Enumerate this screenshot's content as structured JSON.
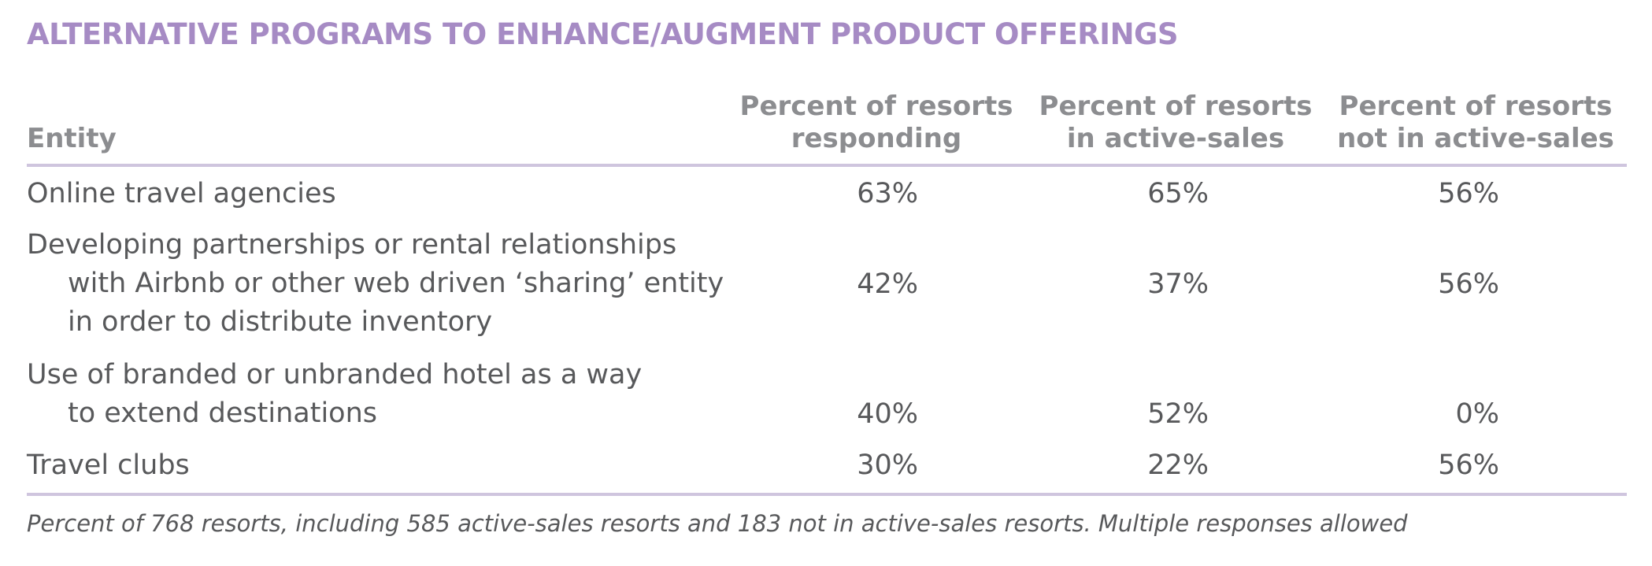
{
  "title": "ALTERNATIVE PROGRAMS TO ENHANCE/AUGMENT PRODUCT OFFERINGS",
  "chart_data": {
    "type": "table",
    "columns": [
      "Entity",
      "Percent of resorts responding",
      "Percent of resorts in active-sales",
      "Percent of resorts not in active-sales"
    ],
    "header_lines": {
      "entity": "Entity",
      "col1": [
        "Percent of resorts",
        "responding"
      ],
      "col2": [
        "Percent of resorts",
        "in active-sales"
      ],
      "col3": [
        "Percent of resorts",
        "not in active-sales"
      ]
    },
    "rows": [
      {
        "label_lines": [
          "Online travel agencies"
        ],
        "values": [
          "63%",
          "65%",
          "56%"
        ]
      },
      {
        "label_lines": [
          "Developing partnerships or rental relationships",
          "with Airbnb or other web driven ‘sharing’ entity",
          "in order to distribute inventory"
        ],
        "values": [
          "42%",
          "37%",
          "56%"
        ]
      },
      {
        "label_lines": [
          "Use of branded or unbranded hotel as a way",
          "to extend destinations"
        ],
        "values": [
          "40%",
          "52%",
          "0%"
        ]
      },
      {
        "label_lines": [
          "Travel clubs"
        ],
        "values": [
          "30%",
          "22%",
          "56%"
        ]
      }
    ],
    "footnote": "Percent of 768 resorts, including 585 active-sales resorts and 183 not in active-sales resorts. Multiple responses allowed"
  },
  "colors": {
    "title": "#a68bc4",
    "header_text": "#8c8d90",
    "body_text": "#58595b",
    "rules": "#cfc5de"
  }
}
